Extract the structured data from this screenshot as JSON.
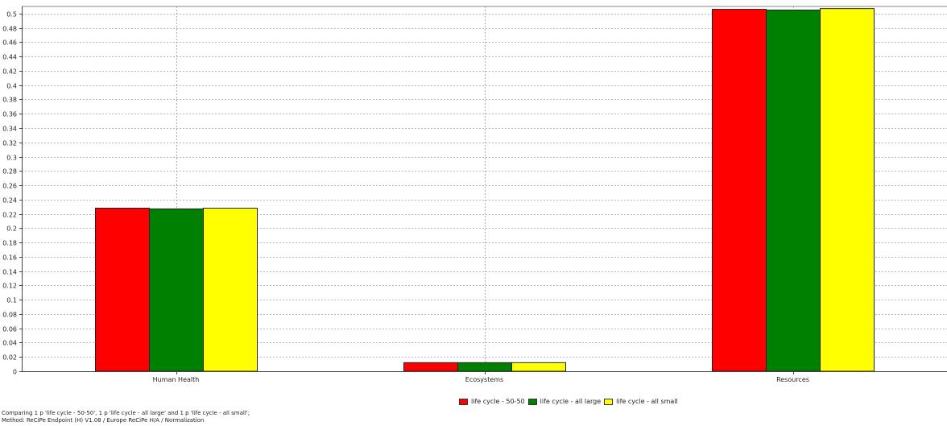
{
  "chart_data": {
    "type": "bar",
    "categories": [
      "Human Health",
      "Ecosystems",
      "Resources"
    ],
    "series": [
      {
        "name": "life cycle - 50-50",
        "color": "#ff0000",
        "values": [
          0.228,
          0.012,
          0.506
        ]
      },
      {
        "name": "life cycle - all large",
        "color": "#008000",
        "values": [
          0.227,
          0.012,
          0.505
        ]
      },
      {
        "name": "life cycle - all small",
        "color": "#ffff00",
        "values": [
          0.228,
          0.012,
          0.507
        ]
      }
    ],
    "ylim": [
      0,
      0.51
    ],
    "yticks": [
      "0",
      "0.02",
      "0.04",
      "0.06",
      "0.08",
      "0.1",
      "0.12",
      "0.14",
      "0.16",
      "0.18",
      "0.2",
      "0.22",
      "0.24",
      "0.26",
      "0.28",
      "0.3",
      "0.32",
      "0.34",
      "0.36",
      "0.38",
      "0.4",
      "0.42",
      "0.44",
      "0.46",
      "0.48",
      "0.5"
    ],
    "grid": true,
    "legend": "bottom-center"
  },
  "footer": {
    "line1": "Comparing 1 p 'life cycle - 50-50', 1 p 'life cycle - all large' and 1 p 'life cycle - all small';",
    "line2": "Method: ReCiPe Endpoint (H) V1.08 / Europe ReCiPe H/A / Normalization"
  }
}
